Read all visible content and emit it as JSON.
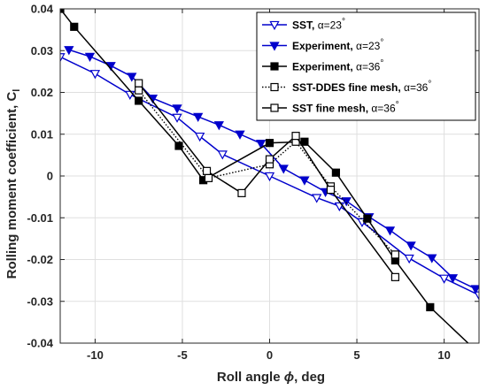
{
  "chart_data": {
    "type": "line",
    "xlabel": "Roll angle ϕ, deg",
    "ylabel": "Rolling moment coefficient, C",
    "ylabel_subscript": "l",
    "xlim": [
      -12,
      12
    ],
    "ylim": [
      -0.04,
      0.04
    ],
    "xticks": [
      -10,
      -5,
      0,
      5,
      10
    ],
    "xtick_labels": [
      "-10",
      "-5",
      "0",
      "5",
      "10"
    ],
    "yticks": [
      -0.04,
      -0.03,
      -0.02,
      -0.01,
      0,
      0.01,
      0.02,
      0.03,
      0.04
    ],
    "ytick_labels": [
      "-0.04",
      "-0.03",
      "-0.02",
      "-0.01",
      "0",
      "0.01",
      "0.02",
      "0.03",
      "0.04"
    ],
    "grid": true,
    "legend_position": "top-right",
    "series": [
      {
        "name": "SST,  α=23°",
        "legend_main": "SST,  ",
        "legend_alpha": "α=23",
        "legend_deg": "°",
        "color": "#0000cc",
        "line_style": "solid",
        "marker": "triangle-down-open",
        "x": [
          -12,
          -10,
          -8,
          -5.3,
          -4,
          -2.7,
          0,
          2.7,
          4,
          5.3,
          8,
          10,
          12
        ],
        "y": [
          0.0285,
          0.0245,
          0.0195,
          0.014,
          0.0095,
          0.0052,
          0,
          -0.0052,
          -0.0072,
          -0.011,
          -0.0197,
          -0.0245,
          -0.0285
        ]
      },
      {
        "name": "Experiment, α=23°",
        "legend_main": "Experiment, ",
        "legend_alpha": "α=23",
        "legend_deg": "°",
        "color": "#0000cc",
        "line_style": "solid",
        "marker": "triangle-down-filled",
        "x": [
          -11.5,
          -10.3,
          -9.1,
          -7.9,
          -6.7,
          -5.3,
          -4.1,
          -2.9,
          -1.7,
          -0.5,
          0.8,
          2.0,
          3.2,
          4.4,
          5.7,
          6.9,
          8.1,
          9.3,
          10.5,
          11.8
        ],
        "y": [
          0.0302,
          0.0286,
          0.0264,
          0.0238,
          0.0186,
          0.0162,
          0.0142,
          0.0122,
          0.01,
          0.0078,
          0.0018,
          -0.001,
          -0.0038,
          -0.006,
          -0.0098,
          -0.013,
          -0.0166,
          -0.0196,
          -0.0244,
          -0.027
        ]
      },
      {
        "name": "Experiment, α=36°",
        "legend_main": "Experiment, ",
        "legend_alpha": "α=36",
        "legend_deg": "°",
        "color": "#000000",
        "line_style": "solid",
        "marker": "square-filled",
        "x": [
          -12,
          -11.2,
          -7.5,
          -5.2,
          -3.8,
          0,
          2.0,
          3.8,
          5.6,
          7.2,
          9.2,
          11.5
        ],
        "y": [
          0.04,
          0.0357,
          0.018,
          0.0072,
          -0.001,
          0.0079,
          0.0082,
          0.0008,
          -0.0102,
          -0.0202,
          -0.0314,
          -0.0405
        ]
      },
      {
        "name": "SST-DDES fine mesh, α=36°",
        "legend_main": "SST-DDES fine mesh, ",
        "legend_alpha": "α=36",
        "legend_deg": "°",
        "color": "#000000",
        "line_style": "dotted",
        "marker": "square-open",
        "x": [
          -7.5,
          -3.5,
          0,
          1.5,
          3.5,
          7.2
        ],
        "y": [
          0.0205,
          -0.0005,
          0.0028,
          0.0082,
          -0.0025,
          -0.0188
        ]
      },
      {
        "name": "SST fine mesh, α=36°",
        "legend_main": "SST fine mesh, ",
        "legend_alpha": "α=36",
        "legend_deg": "°",
        "color": "#000000",
        "line_style": "solid",
        "marker": "square-open",
        "x": [
          -7.5,
          -3.6,
          -1.6,
          0,
          1.5,
          3.5,
          7.2
        ],
        "y": [
          0.0222,
          0.0012,
          -0.0041,
          0.004,
          0.0096,
          -0.0033,
          -0.0242
        ]
      }
    ]
  }
}
